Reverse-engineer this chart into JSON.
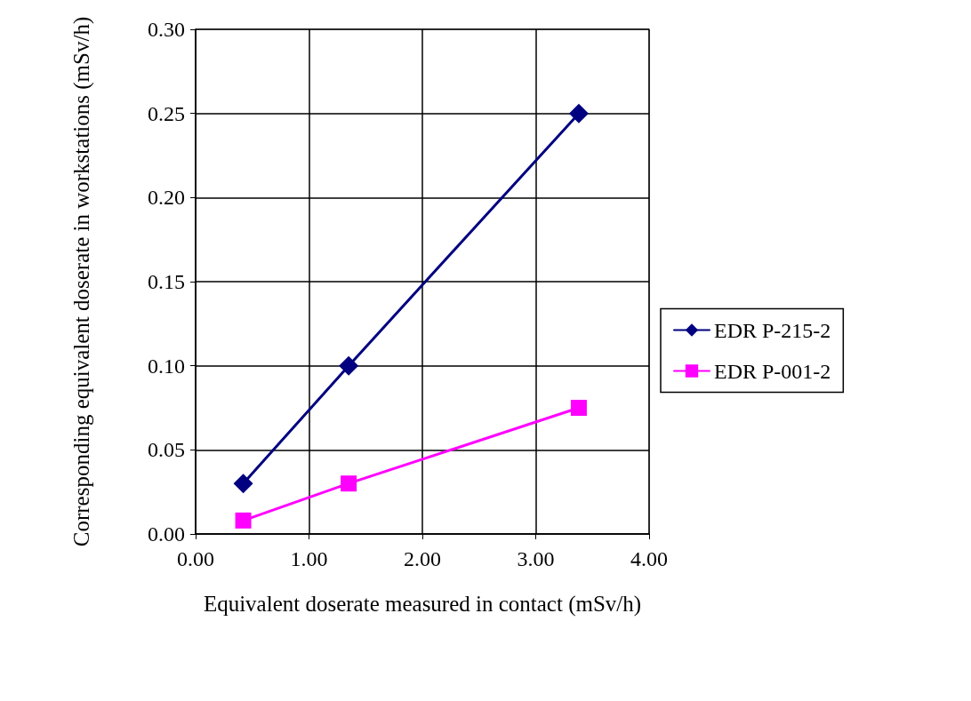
{
  "chart_data": {
    "type": "line",
    "xlabel": "Equivalent doserate measured in contact (mSv/h)",
    "ylabel": "Corresponding equivalent doserate in workstations (mSv/h)",
    "xlim": [
      0,
      4
    ],
    "xticks": [
      {
        "value": 0,
        "label": "0.00"
      },
      {
        "value": 1,
        "label": "1.00"
      },
      {
        "value": 2,
        "label": "2.00"
      },
      {
        "value": 3,
        "label": "3.00"
      },
      {
        "value": 4,
        "label": "4.00"
      }
    ],
    "ylim": [
      0,
      0.3
    ],
    "yticks": [
      {
        "value": 0,
        "label": "0.00"
      },
      {
        "value": 0.05,
        "label": "0.05"
      },
      {
        "value": 0.1,
        "label": "0.10"
      },
      {
        "value": 0.15,
        "label": "0.15"
      },
      {
        "value": 0.2,
        "label": "0.20"
      },
      {
        "value": 0.25,
        "label": "0.25"
      },
      {
        "value": 0.3,
        "label": "0.30"
      }
    ],
    "grid": true,
    "legend": "right",
    "line_style": "solid",
    "series": [
      {
        "name": "EDR P-215-2",
        "color": "#000080",
        "marker": "diamond",
        "x": [
          0.42,
          1.35,
          3.38
        ],
        "values": [
          0.03,
          0.1,
          0.25
        ]
      },
      {
        "name": "EDR P-001-2",
        "color": "#ff00ff",
        "marker": "square",
        "x": [
          0.42,
          1.35,
          3.38
        ],
        "values": [
          0.008,
          0.03,
          0.075
        ]
      }
    ]
  }
}
